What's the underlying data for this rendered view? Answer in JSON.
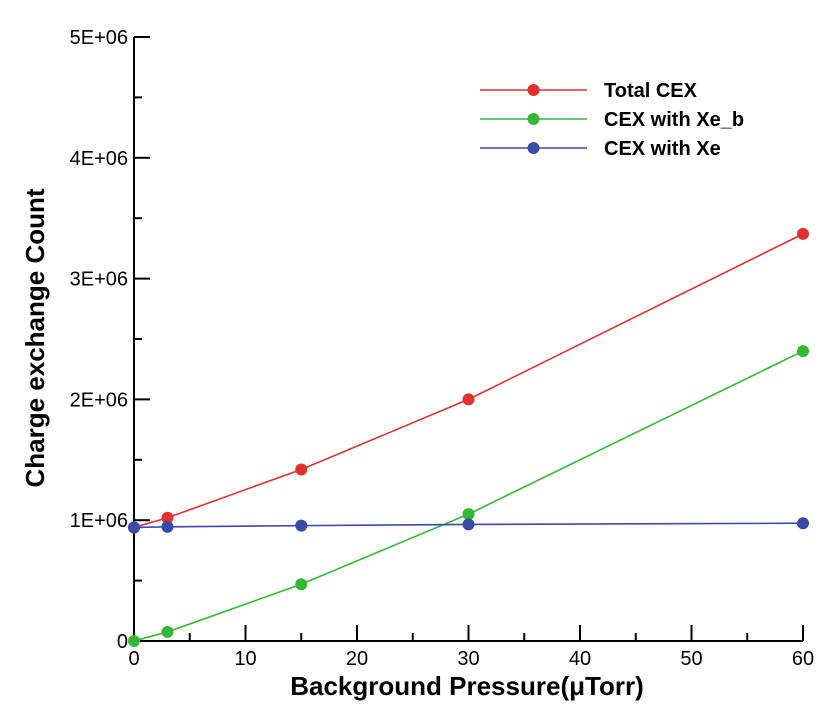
{
  "chart_data": {
    "type": "line",
    "title": "",
    "xlabel": "Background Pressure(μTorr)",
    "ylabel": "Charge exchange Count",
    "xlim": [
      0,
      60
    ],
    "ylim": [
      0,
      5000000
    ],
    "x_ticks": [
      {
        "value": 0,
        "label": "0"
      },
      {
        "value": 10,
        "label": "10"
      },
      {
        "value": 20,
        "label": "20"
      },
      {
        "value": 30,
        "label": "30"
      },
      {
        "value": 40,
        "label": "40"
      },
      {
        "value": 50,
        "label": "50"
      },
      {
        "value": 60,
        "label": "60"
      }
    ],
    "y_ticks": [
      {
        "value": 0,
        "label": "0"
      },
      {
        "value": 1000000,
        "label": "1E+06"
      },
      {
        "value": 2000000,
        "label": "2E+06"
      },
      {
        "value": 3000000,
        "label": "3E+06"
      },
      {
        "value": 4000000,
        "label": "4E+06"
      },
      {
        "value": 5000000,
        "label": "5E+06"
      }
    ],
    "grid": false,
    "legend_position": "top-right",
    "series": [
      {
        "name": "Total CEX",
        "color": "#e03030",
        "x": [
          0,
          3,
          15,
          30,
          60
        ],
        "y": [
          940000,
          1020000,
          1420000,
          2000000,
          3370000
        ]
      },
      {
        "name": "CEX with Xe_b",
        "color": "#33b833",
        "x": [
          0,
          3,
          15,
          30,
          60
        ],
        "y": [
          0,
          75000,
          470000,
          1050000,
          2400000
        ]
      },
      {
        "name": "CEX with Xe",
        "color": "#3a4aa8",
        "x": [
          0,
          3,
          15,
          30,
          60
        ],
        "y": [
          940000,
          945000,
          955000,
          965000,
          975000
        ]
      }
    ]
  }
}
